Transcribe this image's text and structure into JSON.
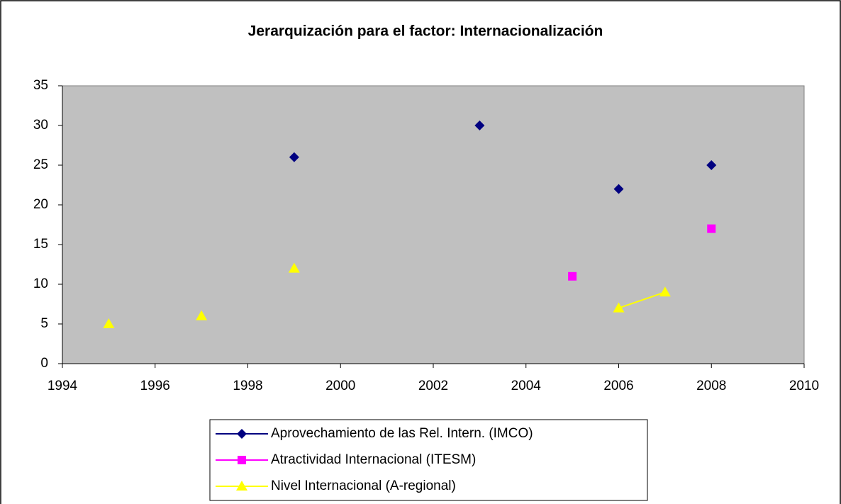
{
  "chart_data": {
    "type": "scatter",
    "title": "Jerarquización para el factor: Internacionalización",
    "x": [
      1995,
      1996,
      1997,
      1998,
      1999,
      2000,
      2001,
      2002,
      2003,
      2004,
      2005,
      2006,
      2007,
      2008
    ],
    "series": [
      {
        "name": "Aprovechamiento de las Rel. Intern. (IMCO)",
        "color": "#000080",
        "marker": "diamond",
        "values": [
          null,
          null,
          null,
          null,
          26,
          null,
          null,
          null,
          30,
          null,
          null,
          22,
          null,
          25
        ]
      },
      {
        "name": "Atractividad Internacional (ITESM)",
        "color": "#ff00ff",
        "marker": "square",
        "values": [
          null,
          null,
          null,
          null,
          null,
          null,
          null,
          null,
          null,
          null,
          11,
          null,
          null,
          17
        ]
      },
      {
        "name": "Nivel Internacional (A-regional)",
        "color": "#ffff00",
        "marker": "triangle",
        "values": [
          5,
          null,
          6,
          null,
          12,
          null,
          null,
          null,
          null,
          null,
          null,
          7,
          9,
          null
        ]
      }
    ],
    "xlim": [
      1994,
      2010
    ],
    "xticks": [
      1994,
      1996,
      1998,
      2000,
      2002,
      2004,
      2006,
      2008,
      2010
    ],
    "ylim": [
      0,
      35
    ],
    "yticks": [
      0,
      5,
      10,
      15,
      20,
      25,
      30,
      35
    ],
    "plot_background": "#c0c0c0",
    "legend": "bottom"
  }
}
